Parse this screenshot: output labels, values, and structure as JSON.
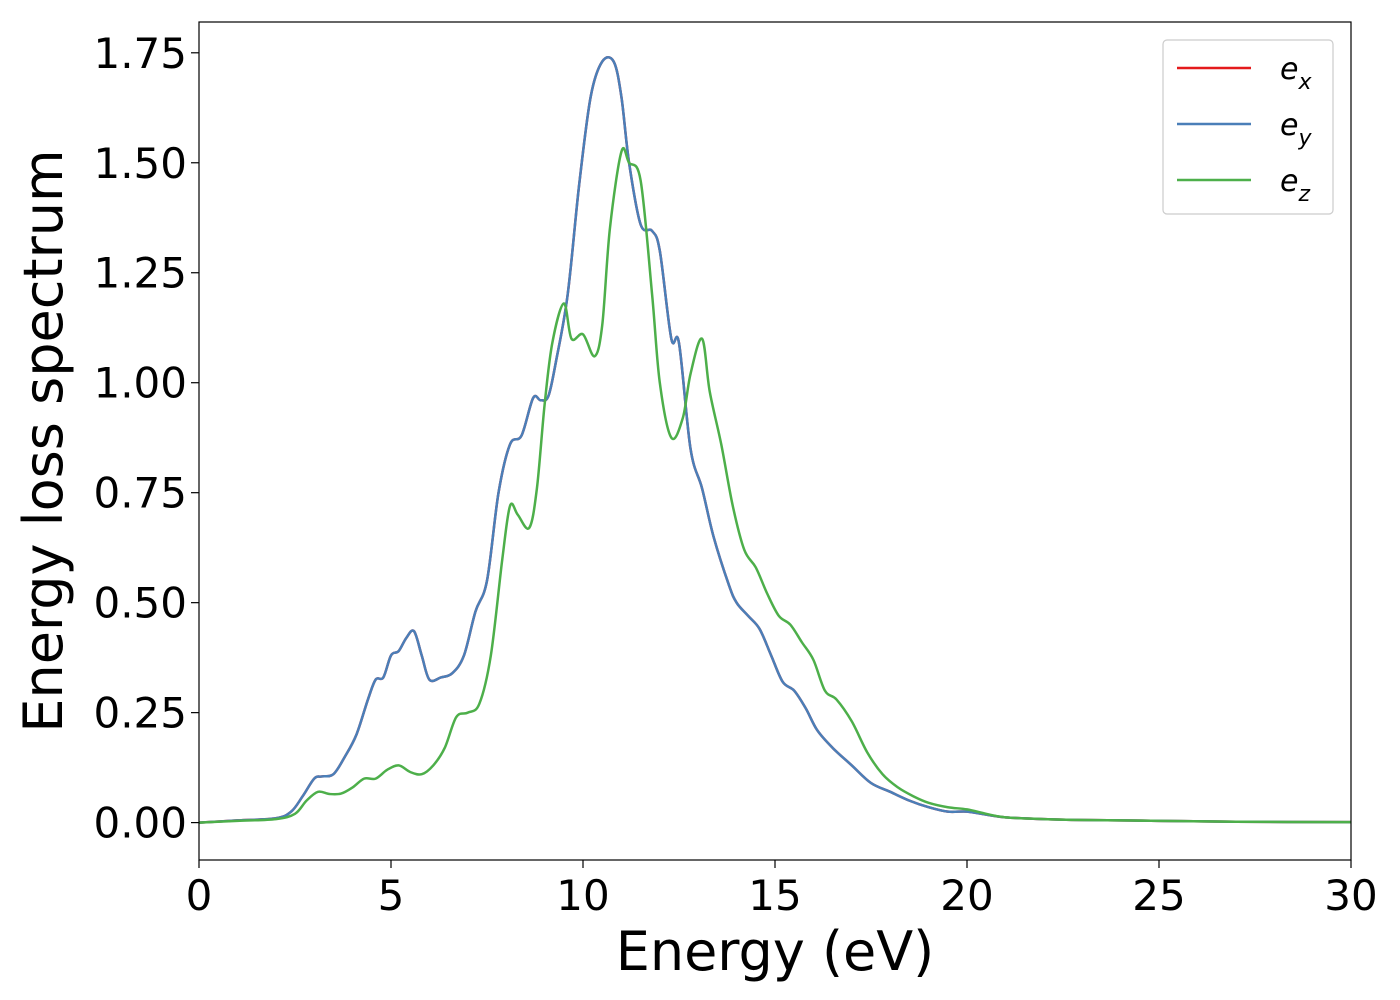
{
  "chart_data": {
    "type": "line",
    "xlabel": "Energy (eV)",
    "ylabel": "Energy loss spectrum",
    "xlim": [
      0,
      30
    ],
    "ylim": [
      -0.085,
      1.82
    ],
    "xticks": [
      0,
      5,
      10,
      15,
      20,
      25,
      30
    ],
    "xtick_labels": [
      "0",
      "5",
      "10",
      "15",
      "20",
      "25",
      "30"
    ],
    "yticks": [
      0,
      0.25,
      0.5,
      0.75,
      1.0,
      1.25,
      1.5,
      1.75
    ],
    "ytick_labels": [
      "0.00",
      "0.25",
      "0.50",
      "0.75",
      "1.00",
      "1.25",
      "1.50",
      "1.75"
    ],
    "grid": false,
    "legend_position": "top-right",
    "series": [
      {
        "name": "e",
        "subscript": "x",
        "color": "#e41a1c",
        "x": [
          0,
          1,
          2,
          2.4,
          2.7,
          3.0,
          3.2,
          3.5,
          3.8,
          4.1,
          4.4,
          4.6,
          4.8,
          5.0,
          5.2,
          5.4,
          5.6,
          5.8,
          6.0,
          6.3,
          6.6,
          6.9,
          7.2,
          7.5,
          7.8,
          8.1,
          8.4,
          8.7,
          8.9,
          9.1,
          9.3,
          9.6,
          9.9,
          10.2,
          10.5,
          10.8,
          11.0,
          11.2,
          11.5,
          11.8,
          12.0,
          12.3,
          12.5,
          12.8,
          13.1,
          13.4,
          13.8,
          14.0,
          14.3,
          14.6,
          14.9,
          15.2,
          15.5,
          15.8,
          16.1,
          16.5,
          17.0,
          17.5,
          18.0,
          18.5,
          19.0,
          19.5,
          20.0,
          20.5,
          21,
          22,
          23,
          25,
          27,
          30
        ],
        "y": [
          0,
          0.005,
          0.01,
          0.025,
          0.06,
          0.1,
          0.105,
          0.11,
          0.15,
          0.2,
          0.28,
          0.325,
          0.33,
          0.38,
          0.39,
          0.42,
          0.435,
          0.38,
          0.325,
          0.33,
          0.34,
          0.38,
          0.48,
          0.55,
          0.75,
          0.86,
          0.88,
          0.965,
          0.96,
          0.97,
          1.05,
          1.2,
          1.45,
          1.65,
          1.73,
          1.73,
          1.65,
          1.5,
          1.36,
          1.345,
          1.3,
          1.1,
          1.09,
          0.85,
          0.76,
          0.65,
          0.54,
          0.5,
          0.47,
          0.44,
          0.38,
          0.32,
          0.3,
          0.26,
          0.21,
          0.17,
          0.13,
          0.09,
          0.07,
          0.05,
          0.035,
          0.025,
          0.025,
          0.018,
          0.012,
          0.008,
          0.006,
          0.004,
          0.002,
          0.001
        ]
      },
      {
        "name": "e",
        "subscript": "y",
        "color": "#4a7fb8",
        "x": [
          0,
          1,
          2,
          2.4,
          2.7,
          3.0,
          3.2,
          3.5,
          3.8,
          4.1,
          4.4,
          4.6,
          4.8,
          5.0,
          5.2,
          5.4,
          5.6,
          5.8,
          6.0,
          6.3,
          6.6,
          6.9,
          7.2,
          7.5,
          7.8,
          8.1,
          8.4,
          8.7,
          8.9,
          9.1,
          9.3,
          9.6,
          9.9,
          10.2,
          10.5,
          10.8,
          11.0,
          11.2,
          11.5,
          11.8,
          12.0,
          12.3,
          12.5,
          12.8,
          13.1,
          13.4,
          13.8,
          14.0,
          14.3,
          14.6,
          14.9,
          15.2,
          15.5,
          15.8,
          16.1,
          16.5,
          17.0,
          17.5,
          18.0,
          18.5,
          19.0,
          19.5,
          20.0,
          20.5,
          21,
          22,
          23,
          25,
          27,
          30
        ],
        "y": [
          0,
          0.005,
          0.01,
          0.025,
          0.06,
          0.1,
          0.105,
          0.11,
          0.15,
          0.2,
          0.28,
          0.325,
          0.33,
          0.38,
          0.39,
          0.42,
          0.435,
          0.38,
          0.325,
          0.33,
          0.34,
          0.38,
          0.48,
          0.55,
          0.75,
          0.86,
          0.88,
          0.965,
          0.96,
          0.97,
          1.05,
          1.2,
          1.45,
          1.65,
          1.73,
          1.73,
          1.65,
          1.5,
          1.36,
          1.345,
          1.3,
          1.1,
          1.09,
          0.85,
          0.76,
          0.65,
          0.54,
          0.5,
          0.47,
          0.44,
          0.38,
          0.32,
          0.3,
          0.26,
          0.21,
          0.17,
          0.13,
          0.09,
          0.07,
          0.05,
          0.035,
          0.025,
          0.025,
          0.018,
          0.012,
          0.008,
          0.006,
          0.004,
          0.002,
          0.001
        ]
      },
      {
        "name": "e",
        "subscript": "z",
        "color": "#4daf4a",
        "x": [
          0,
          1,
          2,
          2.5,
          2.8,
          3.1,
          3.4,
          3.7,
          4.0,
          4.3,
          4.6,
          4.9,
          5.2,
          5.5,
          5.8,
          6.1,
          6.4,
          6.7,
          7.0,
          7.3,
          7.6,
          7.9,
          8.1,
          8.3,
          8.6,
          8.8,
          9.0,
          9.2,
          9.5,
          9.7,
          10.0,
          10.3,
          10.5,
          10.7,
          11.0,
          11.2,
          11.5,
          11.8,
          12.0,
          12.3,
          12.6,
          12.8,
          13.1,
          13.3,
          13.6,
          13.9,
          14.2,
          14.5,
          14.8,
          15.1,
          15.4,
          15.7,
          16.0,
          16.3,
          16.6,
          17.0,
          17.4,
          17.8,
          18.2,
          18.6,
          19.0,
          19.5,
          20.0,
          20.5,
          21,
          22,
          23,
          25,
          27,
          30
        ],
        "y": [
          0,
          0.004,
          0.008,
          0.02,
          0.05,
          0.07,
          0.065,
          0.066,
          0.08,
          0.1,
          0.1,
          0.12,
          0.13,
          0.115,
          0.11,
          0.13,
          0.17,
          0.24,
          0.25,
          0.27,
          0.38,
          0.6,
          0.72,
          0.7,
          0.67,
          0.76,
          0.95,
          1.09,
          1.18,
          1.1,
          1.11,
          1.06,
          1.13,
          1.35,
          1.525,
          1.5,
          1.46,
          1.2,
          1.0,
          0.875,
          0.92,
          1.02,
          1.1,
          0.98,
          0.86,
          0.72,
          0.62,
          0.58,
          0.52,
          0.47,
          0.45,
          0.41,
          0.37,
          0.3,
          0.28,
          0.23,
          0.16,
          0.11,
          0.08,
          0.06,
          0.045,
          0.035,
          0.03,
          0.02,
          0.012,
          0.008,
          0.006,
          0.004,
          0.002,
          0.001
        ]
      }
    ]
  }
}
